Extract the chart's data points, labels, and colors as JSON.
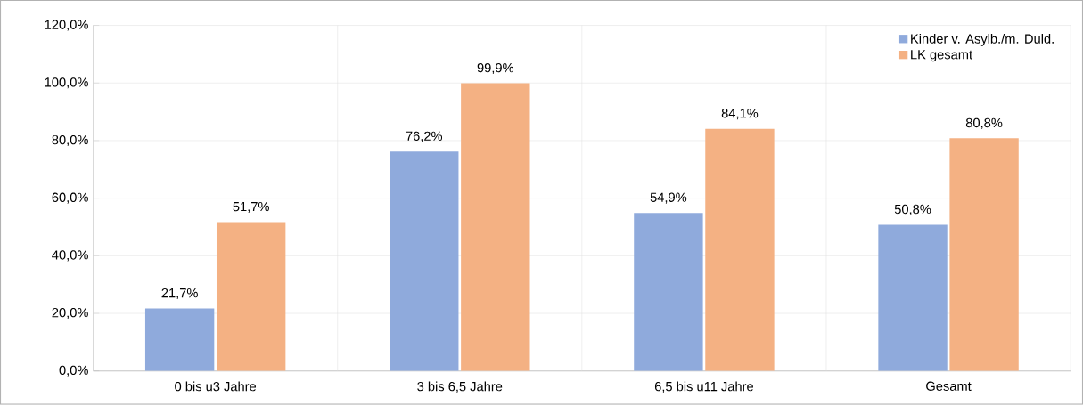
{
  "chart_data": {
    "type": "bar",
    "categories": [
      "0 bis u3 Jahre",
      "3 bis 6,5 Jahre",
      "6,5 bis u11 Jahre",
      "Gesamt"
    ],
    "series": [
      {
        "name": "Kinder v. Asylb./m. Duld.",
        "color": "#8faadc",
        "values": [
          21.7,
          76.2,
          54.9,
          50.8
        ],
        "value_labels": [
          "21,7%",
          "76,2%",
          "54,9%",
          "50,8%"
        ]
      },
      {
        "name": "LK gesamt",
        "color": "#f4b183",
        "values": [
          51.7,
          99.9,
          84.1,
          80.8
        ],
        "value_labels": [
          "51,7%",
          "99,9%",
          "84,1%",
          "80,8%"
        ]
      }
    ],
    "ylim": [
      0,
      120
    ],
    "yticks": [
      {
        "value": 0,
        "label": "0,0%"
      },
      {
        "value": 20,
        "label": "20,0%"
      },
      {
        "value": 40,
        "label": "40,0%"
      },
      {
        "value": 60,
        "label": "60,0%"
      },
      {
        "value": 80,
        "label": "80,0%"
      },
      {
        "value": 100,
        "label": "100,0%"
      },
      {
        "value": 120,
        "label": "120,0%"
      }
    ],
    "grid": true,
    "legend": "top right"
  }
}
